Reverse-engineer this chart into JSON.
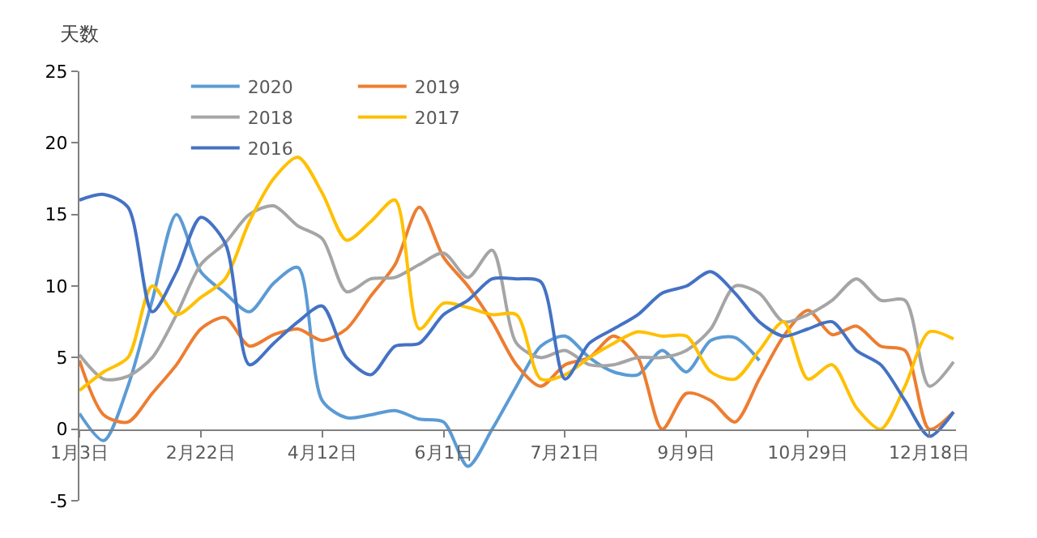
{
  "chart_data": {
    "type": "line",
    "ylabel": "天数",
    "x": [
      "--01-03",
      "--01-13",
      "--01-23",
      "--02-02",
      "--02-12",
      "--02-22",
      "--03-03",
      "--03-13",
      "--03-23",
      "--04-02",
      "--04-12",
      "--04-22",
      "--05-02",
      "--05-12",
      "--05-22",
      "--06-01",
      "--06-11",
      "--06-21",
      "--07-01",
      "--07-11",
      "--07-21",
      "--07-31",
      "--08-10",
      "--08-20",
      "--08-30",
      "--09-09",
      "--09-19",
      "--09-29",
      "--10-09",
      "--10-19",
      "--10-29",
      "--11-08",
      "--11-18",
      "--11-28",
      "--12-08",
      "--12-18",
      "--12-28"
    ],
    "series": [
      {
        "name": "2020",
        "color": "#5b9bd5",
        "values": [
          1.1,
          -0.8,
          3,
          9,
          15,
          11,
          9.5,
          8.2,
          10.2,
          11.3,
          2,
          0.8,
          1.0,
          1.3,
          0.7,
          0.5,
          -2.6,
          0,
          3,
          5.8,
          6.5,
          5,
          4,
          3.8,
          5.5,
          4,
          6.2,
          6.4,
          4.8,
          null,
          null,
          null,
          null,
          null,
          null,
          null,
          null
        ]
      },
      {
        "name": "2019",
        "color": "#ed7d31",
        "values": [
          4.8,
          1.0,
          0.5,
          2.5,
          4.5,
          7.0,
          7.8,
          5.8,
          6.6,
          7.0,
          6.2,
          7,
          9.3,
          11.5,
          15.5,
          12,
          10,
          7.5,
          4.5,
          3,
          4.5,
          5,
          6.5,
          5,
          0,
          2.5,
          2.0,
          0.5,
          3.5,
          6.5,
          8.3,
          6.6,
          7.2,
          5.8,
          5.5,
          0,
          1.2
        ]
      },
      {
        "name": "2018",
        "color": "#a5a5a5",
        "values": [
          5.2,
          3.5,
          3.7,
          5,
          8,
          11.5,
          13,
          15,
          15.6,
          14.2,
          13.3,
          9.6,
          10.5,
          10.6,
          11.5,
          12.3,
          10.6,
          12.5,
          6,
          5,
          5.5,
          4.5,
          4.5,
          5,
          5,
          5.5,
          7,
          10,
          9.5,
          7.5,
          8,
          9,
          10.5,
          9,
          9,
          3,
          4.7
        ]
      },
      {
        "name": "2017",
        "color": "#ffc000",
        "values": [
          2.7,
          4,
          5,
          10,
          8,
          9.2,
          10.5,
          14.5,
          17.5,
          19,
          16.5,
          13.2,
          14.5,
          16,
          7,
          8.8,
          8.5,
          8,
          8,
          3.5,
          3.8,
          5,
          6,
          6.8,
          6.5,
          6.5,
          4,
          3.5,
          5.5,
          7.5,
          3.5,
          4.5,
          1.5,
          0,
          3,
          6.8,
          6.3
        ]
      },
      {
        "name": "2016",
        "color": "#4472c4",
        "values": [
          16,
          16.4,
          15.5,
          8.2,
          11,
          14.8,
          13,
          4.5,
          6,
          7.5,
          8.6,
          5,
          3.8,
          5.8,
          6,
          8,
          9,
          10.5,
          10.5,
          10.3,
          3.5,
          6,
          7,
          8,
          9.5,
          10,
          11,
          9.5,
          7.5,
          6.5,
          7,
          7.5,
          5.5,
          4.5,
          2,
          -0.5,
          1.2
        ]
      }
    ],
    "xlim": [
      "--01-03",
      "--12-29"
    ],
    "xticks": [
      {
        "value": "--01-03",
        "label": "1月3日"
      },
      {
        "value": "--02-22",
        "label": "2月22日"
      },
      {
        "value": "--04-12",
        "label": "4月12日"
      },
      {
        "value": "--06-01",
        "label": "6月1日"
      },
      {
        "value": "--07-21",
        "label": "7月21日"
      },
      {
        "value": "--09-09",
        "label": "9月9日"
      },
      {
        "value": "--10-29",
        "label": "10月29日"
      },
      {
        "value": "--12-18",
        "label": "12月18日"
      }
    ],
    "ylim": [
      -5,
      25
    ],
    "yticks": [
      -5,
      0,
      5,
      10,
      15,
      20,
      25
    ],
    "legend": "top",
    "line_style": "solid",
    "marker": "none"
  }
}
